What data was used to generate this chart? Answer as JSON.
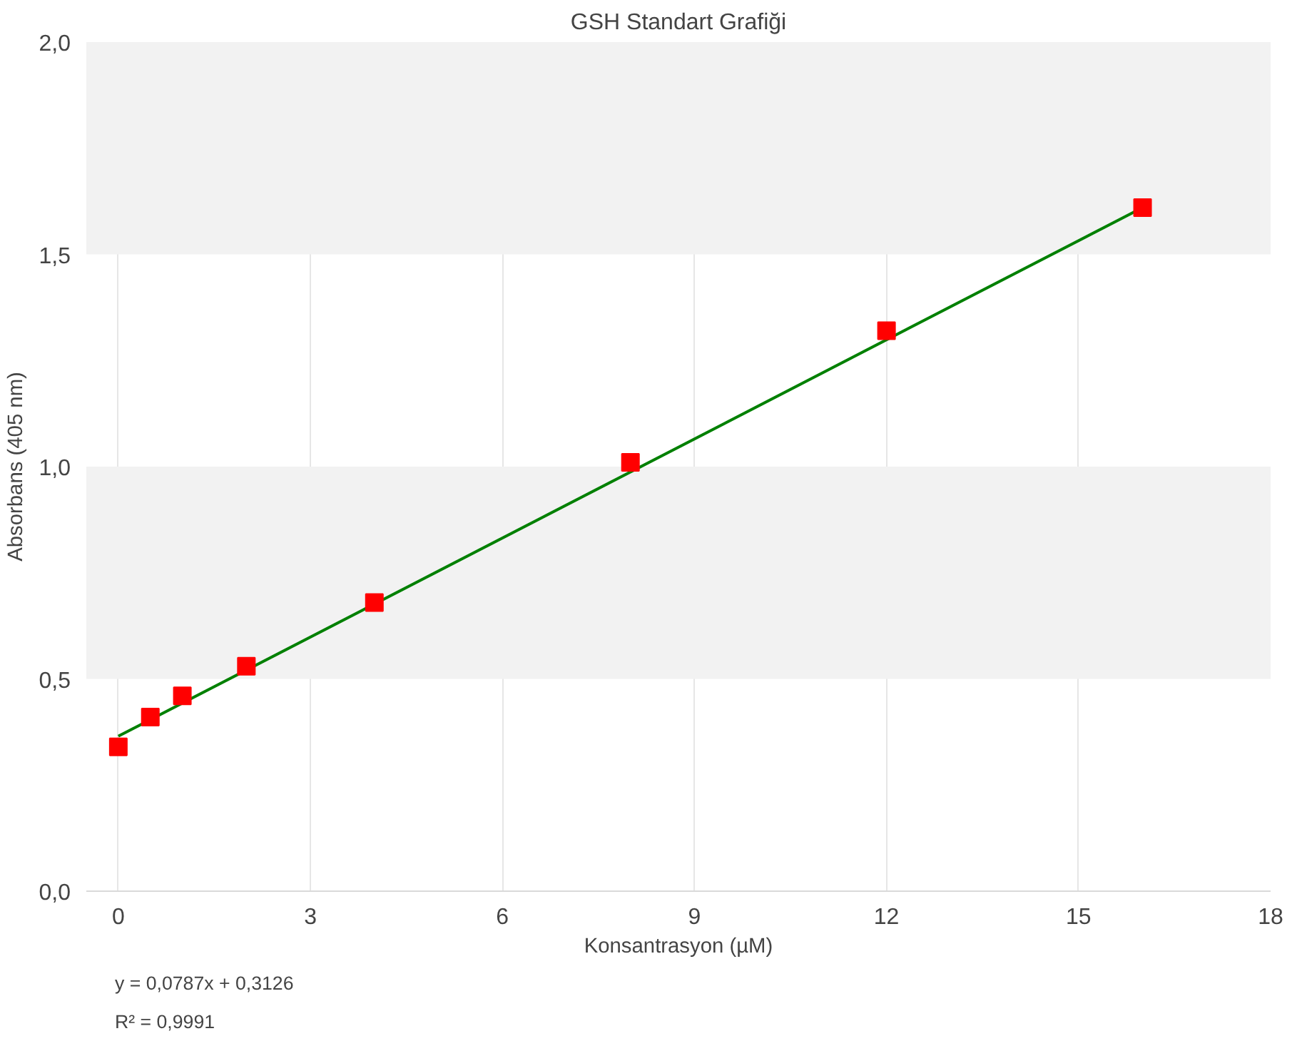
{
  "chart_data": {
    "type": "scatter",
    "title": "GSH Standart Grafiği",
    "xlabel": "Konsantrasyon (µM)",
    "ylabel": "Absorbans (405 nm)",
    "annotations": [
      "y = 0,0787x + 0,3126",
      "R² = 0,9991"
    ],
    "series": [
      {
        "color": "#ff0000",
        "marker": "square",
        "x": [
          0,
          0.5,
          1,
          2,
          4,
          8,
          12,
          16
        ],
        "values": [
          0.34,
          0.41,
          0.46,
          0.53,
          0.68,
          1.01,
          1.32,
          1.61
        ]
      },
      {
        "type": "line",
        "color": "#008000",
        "marker": "none",
        "line_style": "solid",
        "x": [
          0,
          16
        ],
        "values": [
          0.365,
          1.61
        ]
      }
    ],
    "xlim": [
      -0.5,
      18
    ],
    "xticks": [
      0,
      3,
      6,
      9,
      12,
      15,
      18
    ],
    "ylim": [
      0,
      2
    ],
    "yticks": [
      {
        "value": 0,
        "label": "0,0"
      },
      {
        "value": 0.5,
        "label": "0,5"
      },
      {
        "value": 1,
        "label": "1,0"
      },
      {
        "value": 1.5,
        "label": "1,5"
      },
      {
        "value": 2,
        "label": "2,0"
      }
    ],
    "bands": [
      {
        "axis": "y",
        "from": 0.5,
        "to": 1.0,
        "color": "#f2f2f2"
      },
      {
        "axis": "y",
        "from": 1.5,
        "to": 2.0,
        "color": "#f2f2f2"
      }
    ],
    "grid": "x"
  }
}
